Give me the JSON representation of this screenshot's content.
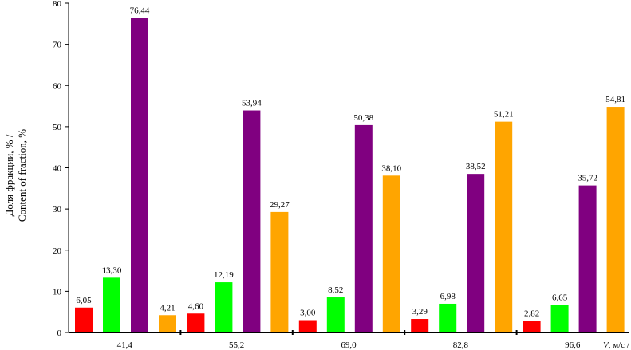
{
  "chart_data": {
    "type": "bar",
    "categories": [
      "41,4",
      "55,2",
      "69,0",
      "82,8",
      "96,6"
    ],
    "series": [
      {
        "color": "#ff0000",
        "values": [
          6.05,
          4.6,
          3.0,
          3.29,
          2.82
        ],
        "labels": [
          "6,05",
          "4,60",
          "3,00",
          "3,29",
          "2,82"
        ]
      },
      {
        "color": "#00ff00",
        "values": [
          13.3,
          12.19,
          8.52,
          6.98,
          6.65
        ],
        "labels": [
          "13,30",
          "12,19",
          "8,52",
          "6,98",
          "6,65"
        ]
      },
      {
        "color": "#800080",
        "values": [
          76.44,
          53.94,
          50.38,
          38.52,
          35.72
        ],
        "labels": [
          "76,44",
          "53,94",
          "50,38",
          "38,52",
          "35,72"
        ]
      },
      {
        "color": "#ffa500",
        "values": [
          4.21,
          29.27,
          38.1,
          51.21,
          54.81
        ],
        "labels": [
          "4,21",
          "29,27",
          "38,10",
          "51,21",
          "54,81"
        ]
      }
    ],
    "ylim": [
      0,
      80
    ],
    "yticks": [
      0,
      10,
      20,
      30,
      40,
      50,
      60,
      70,
      80
    ],
    "ylabel_line1": "Доля фракции, % /",
    "ylabel_line2": "Content of fraction, %",
    "xlabel_italic": "V",
    "xlabel_rest": ", м/с /",
    "grid": false,
    "legend": "none"
  }
}
